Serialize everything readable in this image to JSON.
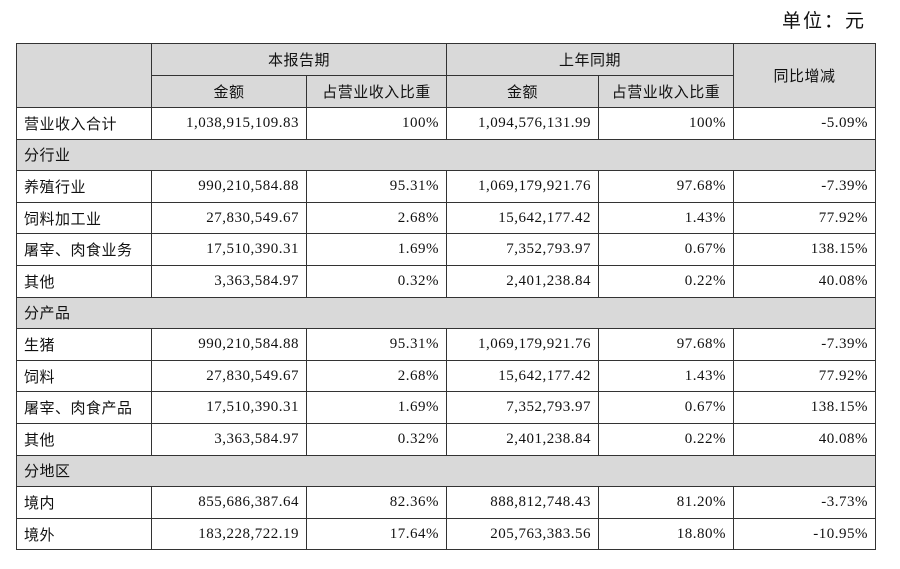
{
  "unit": "单位：元",
  "table": {
    "header": {
      "group_current": "本报告期",
      "group_previous": "上年同期",
      "change": "同比增减",
      "columns": [
        "金额",
        "占营业收入比重",
        "金额",
        "占营业收入比重"
      ]
    },
    "rows": [
      [
        "营业收入合计",
        "1,038,915,109.83",
        "100%",
        "1,094,576,131.99",
        "100%",
        "-5.09%"
      ],
      [
        "分行业"
      ],
      [
        "养殖行业",
        "990,210,584.88",
        "95.31%",
        "1,069,179,921.76",
        "97.68%",
        "-7.39%"
      ],
      [
        "饲料加工业",
        "27,830,549.67",
        "2.68%",
        "15,642,177.42",
        "1.43%",
        "77.92%"
      ],
      [
        "屠宰、肉食业务",
        "17,510,390.31",
        "1.69%",
        "7,352,793.97",
        "0.67%",
        "138.15%"
      ],
      [
        "其他",
        "3,363,584.97",
        "0.32%",
        "2,401,238.84",
        "0.22%",
        "40.08%"
      ],
      [
        "分产品"
      ],
      [
        "生猪",
        "990,210,584.88",
        "95.31%",
        "1,069,179,921.76",
        "97.68%",
        "-7.39%"
      ],
      [
        "饲料",
        "27,830,549.67",
        "2.68%",
        "15,642,177.42",
        "1.43%",
        "77.92%"
      ],
      [
        "屠宰、肉食产品",
        "17,510,390.31",
        "1.69%",
        "7,352,793.97",
        "0.67%",
        "138.15%"
      ],
      [
        "其他",
        "3,363,584.97",
        "0.32%",
        "2,401,238.84",
        "0.22%",
        "40.08%"
      ],
      [
        "分地区"
      ],
      [
        "境内",
        "855,686,387.64",
        "82.36%",
        "888,812,748.43",
        "81.20%",
        "-3.73%"
      ],
      [
        "境外",
        "183,228,722.19",
        "17.64%",
        "205,763,383.56",
        "18.80%",
        "-10.95%"
      ]
    ]
  }
}
